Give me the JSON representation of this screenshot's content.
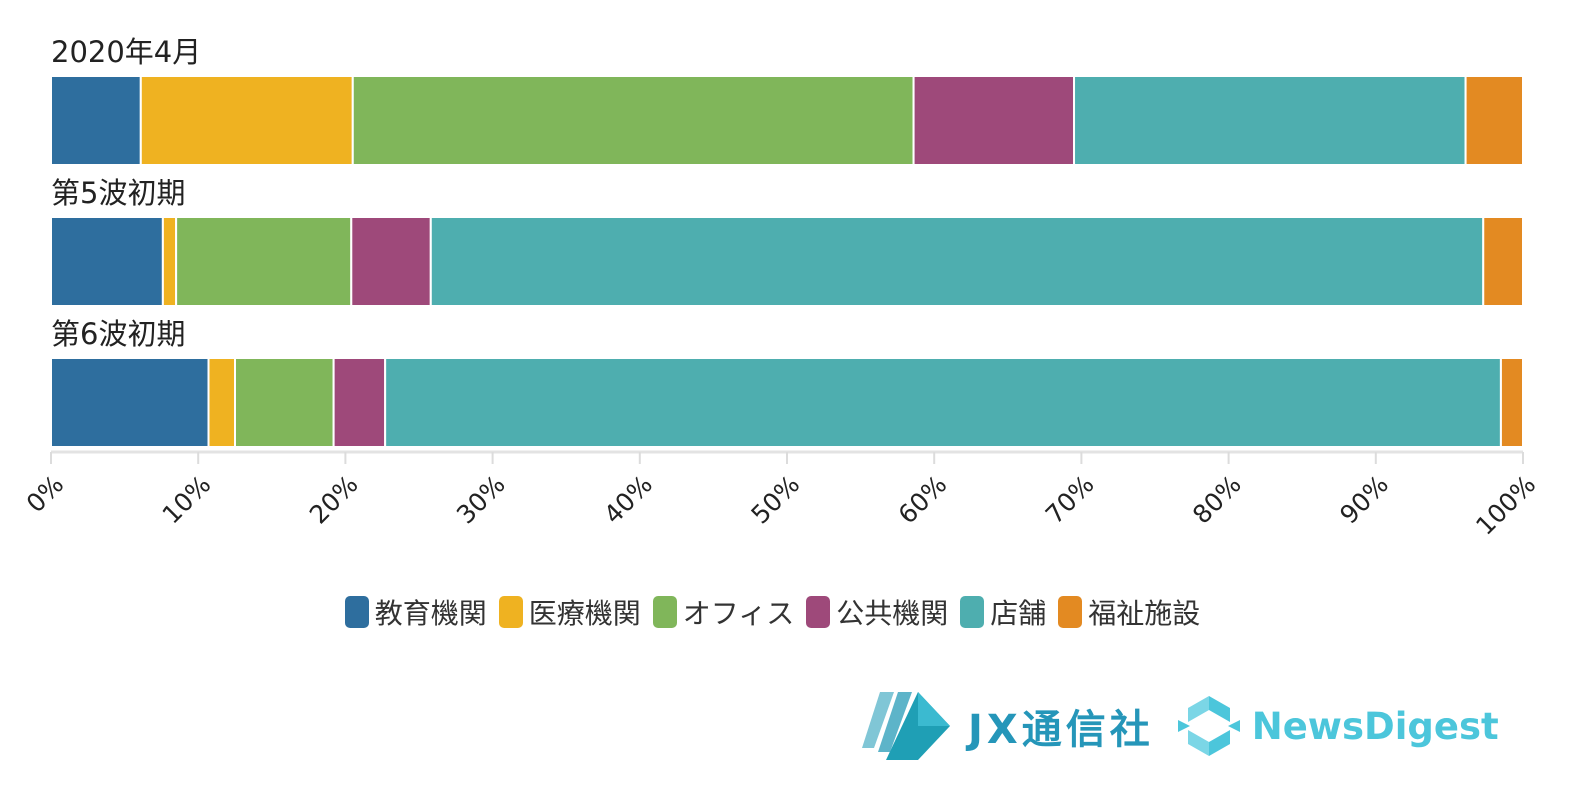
{
  "chart_data": {
    "type": "bar",
    "orientation": "horizontal",
    "stacked": "percent",
    "categories": [
      "2020年4月",
      "第5波初期",
      "第6波初期"
    ],
    "series": [
      {
        "name": "教育機関",
        "color": "#2e6e9e",
        "values": [
          6.1,
          7.6,
          10.7
        ]
      },
      {
        "name": "医療機関",
        "color": "#efb221",
        "values": [
          14.4,
          0.9,
          1.8
        ]
      },
      {
        "name": "オフィス",
        "color": "#80b65a",
        "values": [
          38.1,
          11.9,
          6.7
        ]
      },
      {
        "name": "公共機関",
        "color": "#9e497a",
        "values": [
          10.9,
          5.4,
          3.5
        ]
      },
      {
        "name": "店舗",
        "color": "#4eaeaf",
        "values": [
          26.6,
          71.5,
          75.8
        ]
      },
      {
        "name": "福祉施設",
        "color": "#e38a22",
        "values": [
          3.9,
          2.7,
          1.5
        ]
      }
    ],
    "xlim": [
      0,
      100
    ],
    "xticks": [
      "0%",
      "10%",
      "20%",
      "30%",
      "40%",
      "50%",
      "60%",
      "70%",
      "80%",
      "90%",
      "100%"
    ],
    "xlabel": "",
    "ylabel": "",
    "title": "",
    "grid": false,
    "legend_position": "bottom"
  },
  "logos": {
    "jx": "JX通信社",
    "newsdigest": "NewsDigest"
  }
}
